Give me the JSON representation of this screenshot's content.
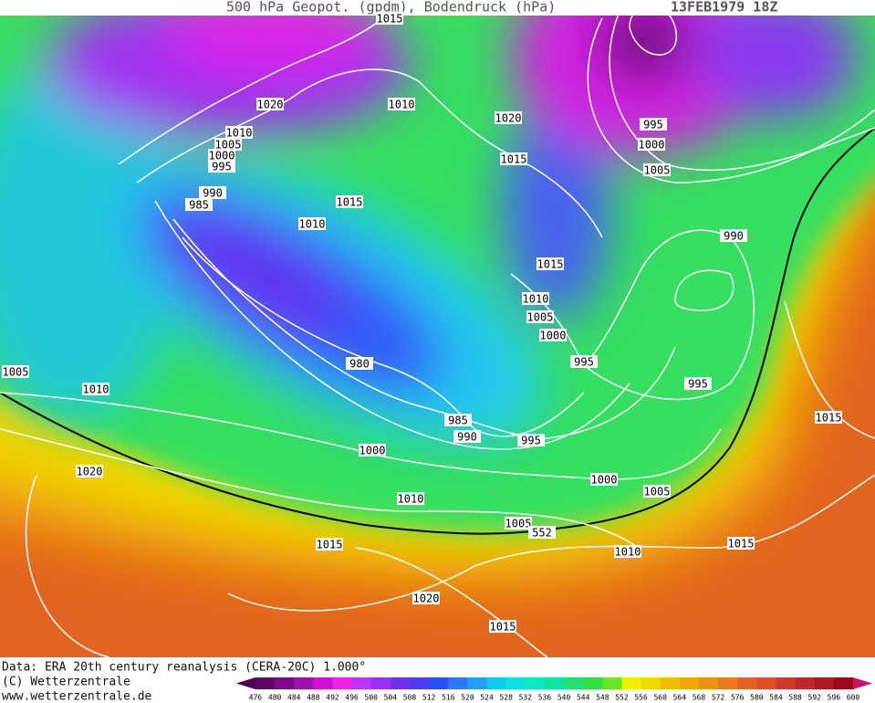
{
  "header": {
    "title": "500 hPa Geopot. (gpdm), Bodendruck (hPa)",
    "date": "13FEB1979 18Z"
  },
  "footer": {
    "source": "Data: ERA 20th century reanalysis (CERA-20C) 1.000°",
    "copyright": "(C) Wetterzentrale",
    "url": "www.wetterzentrale.de"
  },
  "isobar_labels": [
    1015,
    1020,
    1010,
    1010,
    1005,
    1000,
    995,
    990,
    985,
    1020,
    1015,
    995,
    1000,
    1005,
    1015,
    1010,
    990,
    1015,
    1010,
    1005,
    1000,
    995,
    995,
    980,
    1010,
    1005,
    985,
    990,
    995,
    1000,
    1015,
    1020,
    1000,
    1005,
    1010,
    1005,
    552,
    1015,
    1010,
    1015,
    1020,
    1015
  ],
  "colorbar": {
    "levels": [
      476,
      480,
      484,
      488,
      492,
      496,
      500,
      504,
      508,
      512,
      516,
      520,
      524,
      528,
      532,
      536,
      540,
      544,
      548,
      552,
      556,
      560,
      564,
      568,
      572,
      576,
      580,
      584,
      588,
      592,
      596,
      600
    ],
    "colors": [
      "#4a0050",
      "#5c0a66",
      "#7a0a8a",
      "#a010b0",
      "#d010d8",
      "#f020f0",
      "#c030f8",
      "#9a30f8",
      "#7030f0",
      "#4a3cf0",
      "#2850f8",
      "#2a78f8",
      "#20a0f8",
      "#10c8f0",
      "#10e0e0",
      "#10e8c0",
      "#10e0a0",
      "#20e070",
      "#30e040",
      "#60e820",
      "#f0f000",
      "#f0d800",
      "#f0c000",
      "#f0a800",
      "#f09010",
      "#f07818",
      "#e86020",
      "#e05028",
      "#d03828",
      "#c02828",
      "#b01820",
      "#a00818",
      "#d0106a"
    ]
  }
}
